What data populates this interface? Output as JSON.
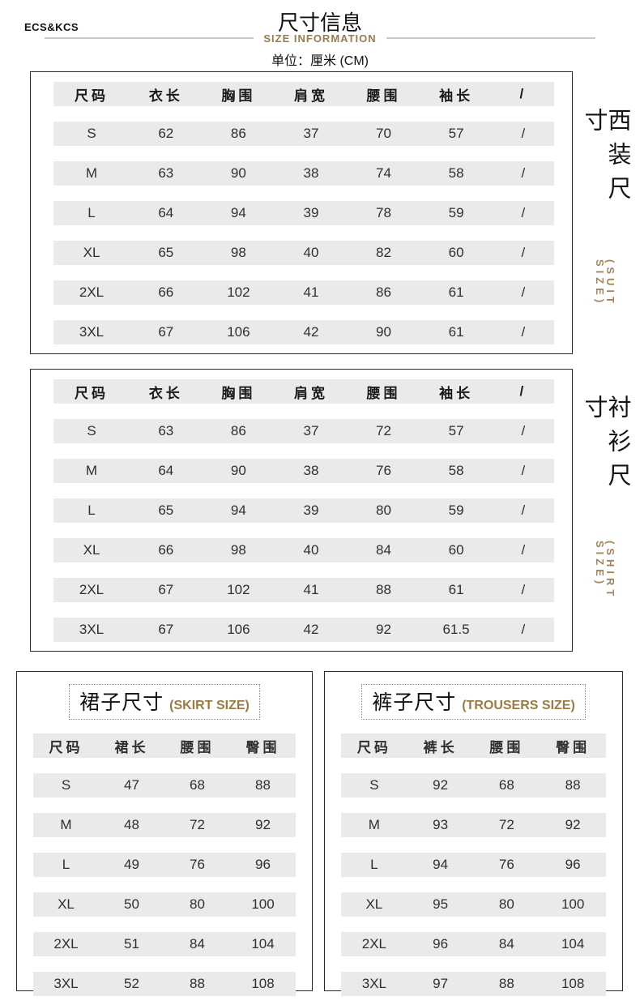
{
  "brand": "ECS&KCS",
  "header": {
    "title": "尺寸信息",
    "subtitle": "SIZE INFORMATION",
    "unit": "单位：厘米 (CM)"
  },
  "colors": {
    "accent_gold": "#9c7a4e",
    "row_gray": "#eaeaea",
    "divider_gray": "#c9c9c9",
    "border_dark": "#2b2b2b"
  },
  "suit_table": {
    "side_label_cn": "西装尺寸",
    "side_label_en": "(SUIT SIZE)",
    "columns": [
      "尺码",
      "衣长",
      "胸围",
      "肩宽",
      "腰围",
      "袖长",
      "/"
    ],
    "rows": [
      [
        "S",
        "62",
        "86",
        "37",
        "70",
        "57",
        "/"
      ],
      [
        "M",
        "63",
        "90",
        "38",
        "74",
        "58",
        "/"
      ],
      [
        "L",
        "64",
        "94",
        "39",
        "78",
        "59",
        "/"
      ],
      [
        "XL",
        "65",
        "98",
        "40",
        "82",
        "60",
        "/"
      ],
      [
        "2XL",
        "66",
        "102",
        "41",
        "86",
        "61",
        "/"
      ],
      [
        "3XL",
        "67",
        "106",
        "42",
        "90",
        "61",
        "/"
      ]
    ]
  },
  "shirt_table": {
    "side_label_cn": "衬衫尺寸",
    "side_label_en": "(SHIRT SIZE)",
    "columns": [
      "尺码",
      "衣长",
      "胸围",
      "肩宽",
      "腰围",
      "袖长",
      "/"
    ],
    "rows": [
      [
        "S",
        "63",
        "86",
        "37",
        "72",
        "57",
        "/"
      ],
      [
        "M",
        "64",
        "90",
        "38",
        "76",
        "58",
        "/"
      ],
      [
        "L",
        "65",
        "94",
        "39",
        "80",
        "59",
        "/"
      ],
      [
        "XL",
        "66",
        "98",
        "40",
        "84",
        "60",
        "/"
      ],
      [
        "2XL",
        "67",
        "102",
        "41",
        "88",
        "61",
        "/"
      ],
      [
        "3XL",
        "67",
        "106",
        "42",
        "92",
        "61.5",
        "/"
      ]
    ]
  },
  "skirt_table": {
    "title_cn": "裙子尺寸",
    "title_en": "(SKIRT SIZE)",
    "columns": [
      "尺码",
      "裙长",
      "腰围",
      "臀围"
    ],
    "rows": [
      [
        "S",
        "47",
        "68",
        "88"
      ],
      [
        "M",
        "48",
        "72",
        "92"
      ],
      [
        "L",
        "49",
        "76",
        "96"
      ],
      [
        "XL",
        "50",
        "80",
        "100"
      ],
      [
        "2XL",
        "51",
        "84",
        "104"
      ],
      [
        "3XL",
        "52",
        "88",
        "108"
      ]
    ]
  },
  "trousers_table": {
    "title_cn": "裤子尺寸",
    "title_en": "(TROUSERS SIZE)",
    "columns": [
      "尺码",
      "裤长",
      "腰围",
      "臀围"
    ],
    "rows": [
      [
        "S",
        "92",
        "68",
        "88"
      ],
      [
        "M",
        "93",
        "72",
        "92"
      ],
      [
        "L",
        "94",
        "76",
        "96"
      ],
      [
        "XL",
        "95",
        "80",
        "100"
      ],
      [
        "2XL",
        "96",
        "84",
        "104"
      ],
      [
        "3XL",
        "97",
        "88",
        "108"
      ]
    ]
  }
}
